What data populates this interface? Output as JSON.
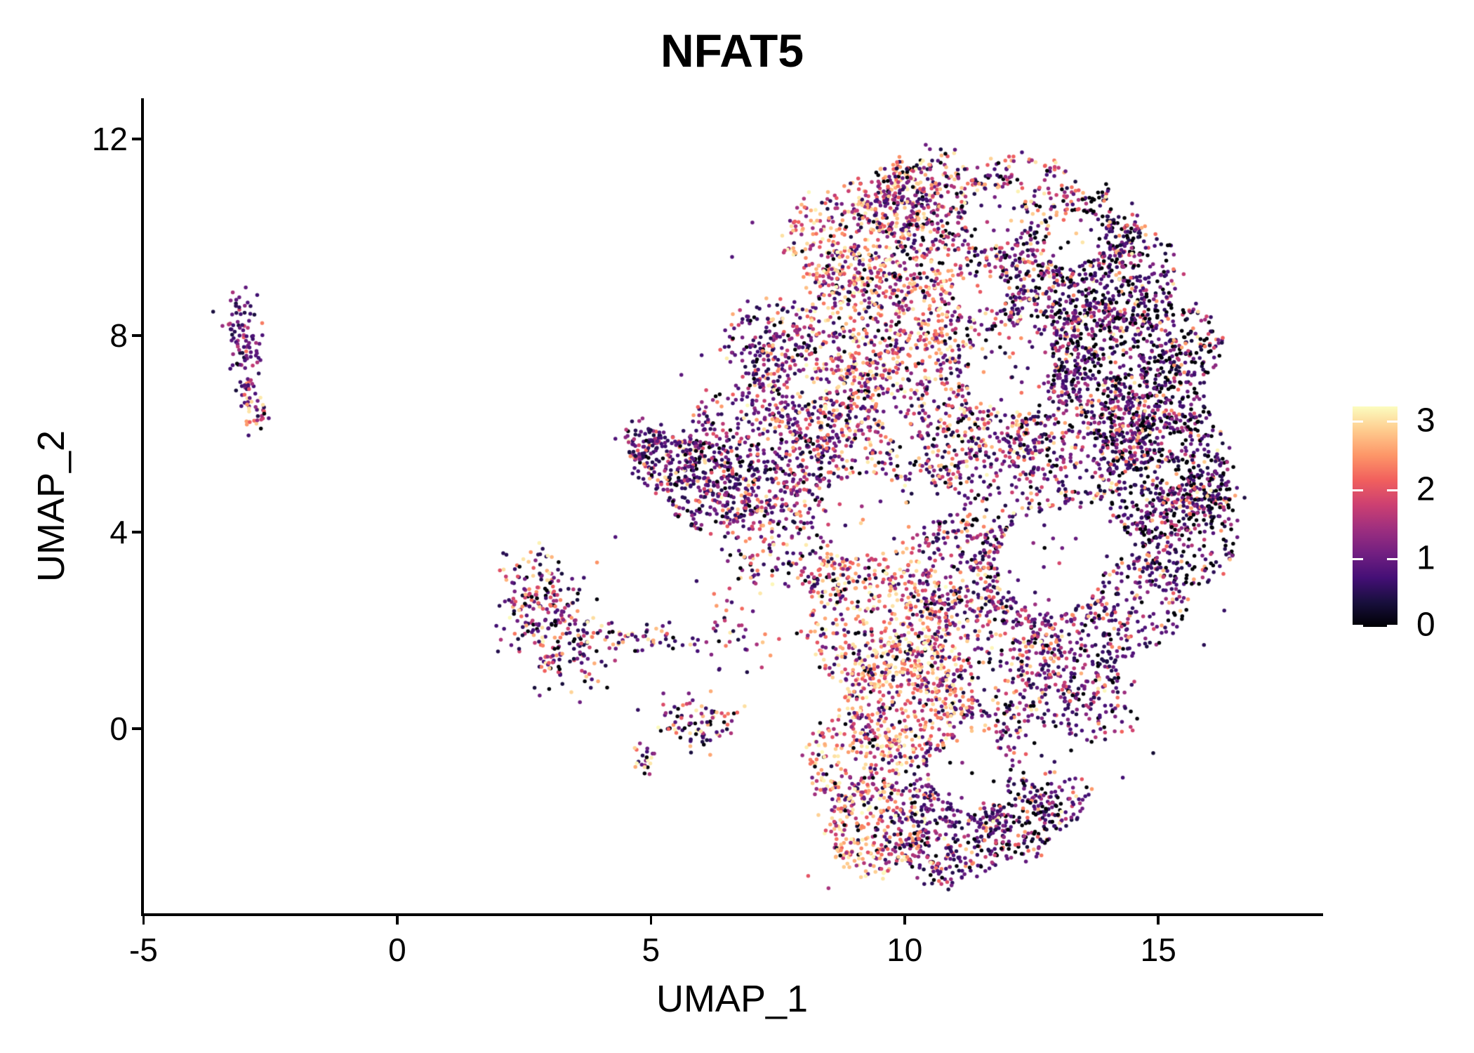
{
  "page": {
    "background": "#ffffff",
    "text_color": "#000000",
    "axis_color": "#000000"
  },
  "chart_data": {
    "type": "scatter",
    "title": "NFAT5",
    "xlabel": "UMAP_1",
    "ylabel": "UMAP_2",
    "x_ticks": [
      -5,
      0,
      5,
      10,
      15
    ],
    "y_ticks": [
      0,
      4,
      8,
      12
    ],
    "x_domain": [
      -5.02,
      18.22
    ],
    "y_domain": [
      -3.79,
      12.83
    ],
    "grid": false,
    "background": "#ffffff",
    "point_radius_px": 2.75,
    "seed": 42,
    "legend": {
      "position": "right",
      "ticks": [
        0,
        1,
        2,
        3
      ],
      "domain": [
        0,
        3.2
      ],
      "colormap": "magma",
      "tick_color": "#ffffff"
    },
    "colormap_stops": [
      "#000004",
      "#180f3d",
      "#440f76",
      "#721f81",
      "#9e2f7f",
      "#cd4071",
      "#f1605d",
      "#fd9668",
      "#feca8d",
      "#fcfdbf"
    ],
    "expression_profiles": {
      "dark": [
        [
          0.3,
          0.0,
          0.05
        ],
        [
          0.4,
          0.3,
          1.0
        ],
        [
          0.18,
          1.0,
          1.8
        ],
        [
          0.09,
          1.8,
          2.7
        ],
        [
          0.03,
          2.7,
          3.2
        ]
      ],
      "darkpurple": [
        [
          0.1,
          0.0,
          0.05
        ],
        [
          0.55,
          0.35,
          1.05
        ],
        [
          0.22,
          1.05,
          1.9
        ],
        [
          0.1,
          1.9,
          2.7
        ],
        [
          0.03,
          2.7,
          3.2
        ]
      ],
      "mixed": [
        [
          0.08,
          0.0,
          0.05
        ],
        [
          0.34,
          0.3,
          1.1
        ],
        [
          0.28,
          1.1,
          2.0
        ],
        [
          0.22,
          2.0,
          2.85
        ],
        [
          0.08,
          2.85,
          3.2
        ]
      ],
      "warm": [
        [
          0.05,
          0.0,
          0.05
        ],
        [
          0.18,
          0.3,
          1.2
        ],
        [
          0.27,
          1.2,
          2.1
        ],
        [
          0.33,
          2.1,
          2.95
        ],
        [
          0.17,
          2.95,
          3.2
        ]
      ],
      "satellite": [
        [
          0.05,
          0.0,
          0.05
        ],
        [
          0.63,
          0.35,
          1.0
        ],
        [
          0.22,
          1.0,
          1.7
        ],
        [
          0.07,
          1.7,
          2.4
        ],
        [
          0.03,
          2.4,
          3.0
        ]
      ],
      "satellitetip": [
        [
          0.05,
          0.0,
          0.05
        ],
        [
          0.25,
          0.4,
          1.1
        ],
        [
          0.25,
          1.1,
          2.0
        ],
        [
          0.28,
          2.0,
          2.9
        ],
        [
          0.17,
          2.9,
          3.2
        ]
      ],
      "midmix": [
        [
          0.1,
          0.0,
          0.05
        ],
        [
          0.43,
          0.3,
          1.1
        ],
        [
          0.22,
          1.1,
          2.0
        ],
        [
          0.17,
          2.0,
          2.9
        ],
        [
          0.08,
          2.9,
          3.2
        ]
      ],
      "midlow": [
        [
          0.18,
          0.0,
          0.05
        ],
        [
          0.37,
          0.3,
          1.1
        ],
        [
          0.2,
          1.1,
          2.0
        ],
        [
          0.17,
          2.0,
          2.9
        ],
        [
          0.08,
          2.9,
          3.2
        ]
      ]
    },
    "clusters": [
      {
        "shape": "g",
        "p": [
          -3.07,
          8.3,
          0.17,
          0.33
        ],
        "n": 48,
        "e": "satellite"
      },
      {
        "shape": "g",
        "p": [
          -3.0,
          7.65,
          0.14,
          0.3
        ],
        "n": 40,
        "e": "satellite"
      },
      {
        "shape": "g",
        "p": [
          -2.92,
          6.9,
          0.1,
          0.25
        ],
        "n": 22,
        "e": "satellite"
      },
      {
        "shape": "g",
        "p": [
          -2.82,
          6.45,
          0.1,
          0.22
        ],
        "n": 30,
        "e": "satellitetip"
      },
      {
        "shape": "g",
        "p": [
          2.8,
          2.55,
          0.42,
          0.5
        ],
        "n": 190,
        "e": "midmix"
      },
      {
        "shape": "g",
        "p": [
          3.4,
          1.55,
          0.45,
          0.4
        ],
        "n": 110,
        "e": "midmix"
      },
      {
        "shape": "c",
        "p": [
          3.8,
          1.95,
          6.1,
          1.75,
          0.18
        ],
        "n": 55,
        "e": "midmix"
      },
      {
        "shape": "g",
        "p": [
          5.9,
          0.1,
          0.42,
          0.28
        ],
        "n": 85,
        "e": "midlow"
      },
      {
        "shape": "g",
        "p": [
          4.92,
          -0.55,
          0.13,
          0.18
        ],
        "n": 22,
        "e": "midlow"
      },
      {
        "shape": "g",
        "p": [
          6.8,
          1.9,
          0.55,
          0.5
        ],
        "n": 40,
        "e": "mixed"
      },
      {
        "shape": "d",
        "p": [
          10.6,
          9.6,
          2.2
        ],
        "n": 620,
        "e": "mixed"
      },
      {
        "shape": "d",
        "p": [
          9.6,
          8.3,
          1.6
        ],
        "n": 380,
        "e": "warm"
      },
      {
        "shape": "d",
        "p": [
          10.4,
          10.7,
          1.0
        ],
        "n": 190,
        "e": "mixed"
      },
      {
        "shape": "d",
        "p": [
          12.9,
          9.0,
          1.9
        ],
        "n": 500,
        "e": "dark"
      },
      {
        "shape": "d",
        "p": [
          14.3,
          7.3,
          1.6
        ],
        "n": 380,
        "e": "dark"
      },
      {
        "shape": "d",
        "p": [
          15.1,
          5.2,
          1.4
        ],
        "n": 400,
        "e": "dark"
      },
      {
        "shape": "d",
        "p": [
          15.5,
          3.9,
          1.1
        ],
        "n": 220,
        "e": "dark"
      },
      {
        "shape": "d",
        "p": [
          13.4,
          5.9,
          1.4
        ],
        "n": 260,
        "e": "darkpurple"
      },
      {
        "shape": "d",
        "p": [
          7.1,
          5.6,
          1.5
        ],
        "n": 430,
        "e": "darkpurple"
      },
      {
        "shape": "d",
        "p": [
          6.2,
          4.9,
          0.9
        ],
        "n": 200,
        "e": "darkpurple"
      },
      {
        "shape": "d",
        "p": [
          5.3,
          5.5,
          0.7
        ],
        "n": 150,
        "e": "darkpurple"
      },
      {
        "shape": "d",
        "p": [
          4.85,
          5.9,
          0.4
        ],
        "n": 50,
        "e": "darkpurple"
      },
      {
        "shape": "d",
        "p": [
          8.3,
          6.9,
          1.4
        ],
        "n": 330,
        "e": "mixed"
      },
      {
        "shape": "d",
        "p": [
          8.1,
          4.0,
          1.6
        ],
        "n": 360,
        "e": "mixed"
      },
      {
        "shape": "d",
        "p": [
          9.9,
          6.1,
          1.6
        ],
        "n": 300,
        "e": "mixed"
      },
      {
        "shape": "d",
        "p": [
          11.6,
          4.8,
          1.7
        ],
        "n": 330,
        "e": "darkpurple"
      },
      {
        "shape": "d",
        "p": [
          12.6,
          3.2,
          1.3
        ],
        "n": 220,
        "e": "darkpurple"
      },
      {
        "shape": "d",
        "p": [
          9.4,
          2.3,
          1.5
        ],
        "n": 430,
        "e": "warm"
      },
      {
        "shape": "d",
        "p": [
          10.1,
          0.6,
          1.3
        ],
        "n": 380,
        "e": "warm"
      },
      {
        "shape": "d",
        "p": [
          11.6,
          1.5,
          1.6
        ],
        "n": 380,
        "e": "mixed"
      },
      {
        "shape": "d",
        "p": [
          13.3,
          1.6,
          1.2
        ],
        "n": 230,
        "e": "darkpurple"
      },
      {
        "shape": "d",
        "p": [
          14.3,
          9.2,
          1.1
        ],
        "n": 230,
        "e": "dark"
      },
      {
        "shape": "d",
        "p": [
          11.9,
          6.7,
          1.3
        ],
        "n": 240,
        "e": "mixed"
      },
      {
        "shape": "d",
        "p": [
          12.4,
          10.4,
          1.3
        ],
        "n": 220,
        "e": "mixed"
      },
      {
        "shape": "d",
        "p": [
          14.9,
          6.3,
          1.1
        ],
        "n": 220,
        "e": "dark"
      },
      {
        "shape": "d",
        "p": [
          9.0,
          -0.6,
          1.0
        ],
        "n": 200,
        "e": "warm"
      },
      {
        "shape": "d",
        "p": [
          9.4,
          -2.0,
          1.0
        ],
        "n": 280,
        "e": "warm"
      },
      {
        "shape": "d",
        "p": [
          10.9,
          -2.1,
          1.1
        ],
        "n": 330,
        "e": "darkpurple"
      },
      {
        "shape": "d",
        "p": [
          12.3,
          -1.8,
          0.9
        ],
        "n": 200,
        "e": "dark"
      },
      {
        "shape": "d",
        "p": [
          13.05,
          -1.35,
          0.6
        ],
        "n": 80,
        "e": "darkpurple"
      },
      {
        "shape": "d",
        "p": [
          7.3,
          7.9,
          0.9
        ],
        "n": 150,
        "e": "darkpurple"
      },
      {
        "shape": "d",
        "p": [
          8.7,
          9.9,
          1.1
        ],
        "n": 200,
        "e": "warm"
      },
      {
        "shape": "d",
        "p": [
          9.9,
          10.8,
          0.75
        ],
        "n": 110,
        "e": "warm"
      },
      {
        "shape": "d",
        "p": [
          15.9,
          4.8,
          0.55
        ],
        "n": 100,
        "e": "dark"
      },
      {
        "shape": "d",
        "p": [
          15.4,
          7.8,
          0.9
        ],
        "n": 150,
        "e": "dark"
      },
      {
        "shape": "d",
        "p": [
          13.9,
          10.2,
          0.8
        ],
        "n": 120,
        "e": "dark"
      },
      {
        "shape": "d",
        "p": [
          11.2,
          3.2,
          1.2
        ],
        "n": 200,
        "e": "mixed"
      },
      {
        "shape": "d",
        "p": [
          12.7,
          7.9,
          1.1
        ],
        "n": 200,
        "e": "darkpurple"
      },
      {
        "shape": "d",
        "p": [
          14.6,
          2.6,
          1.0
        ],
        "n": 160,
        "e": "darkpurple"
      },
      {
        "shape": "d",
        "p": [
          13.9,
          0.6,
          0.9
        ],
        "n": 130,
        "e": "darkpurple"
      },
      {
        "shape": "d",
        "p": [
          12.4,
          -0.3,
          0.9
        ],
        "n": 110,
        "e": "darkpurple"
      },
      {
        "shape": "d",
        "p": [
          10.8,
          -0.9,
          0.8
        ],
        "n": 90,
        "e": "mixed"
      }
    ],
    "holes": [
      [
        12.9,
        3.4,
        1.05,
        0.92
      ],
      [
        12.1,
        7.3,
        0.85,
        0.9
      ],
      [
        9.15,
        4.3,
        0.85,
        0.85
      ],
      [
        11.8,
        10.4,
        0.6,
        0.9
      ],
      [
        13.35,
        10.0,
        0.55,
        0.9
      ],
      [
        11.3,
        -0.9,
        0.75,
        0.88
      ],
      [
        12.8,
        -0.6,
        0.6,
        0.88
      ],
      [
        11.5,
        8.8,
        0.5,
        0.85
      ],
      [
        7.6,
        2.6,
        0.55,
        0.8
      ],
      [
        10.3,
        4.6,
        0.6,
        0.7
      ],
      [
        14.9,
        0.9,
        0.7,
        0.85
      ]
    ],
    "outliers": [
      [
        15.3,
        9.35,
        2.3
      ],
      [
        15.5,
        9.25,
        1.7
      ],
      [
        16.55,
        4.9,
        0.8
      ],
      [
        16.7,
        4.7,
        0.4
      ],
      [
        12.15,
        11.55,
        1.2
      ],
      [
        11.7,
        11.6,
        2.9
      ],
      [
        13.2,
        11.0,
        0.4
      ],
      [
        6.0,
        7.6,
        0.7
      ],
      [
        5.6,
        7.2,
        0.9
      ],
      [
        4.3,
        5.9,
        0.8
      ],
      [
        16.3,
        2.4,
        0.6
      ],
      [
        15.9,
        1.7,
        0.5
      ],
      [
        14.9,
        -0.5,
        0.3
      ],
      [
        14.3,
        -1.0,
        0.7
      ],
      [
        8.1,
        -3.0,
        2.0
      ],
      [
        8.5,
        -3.25,
        1.5
      ],
      [
        4.3,
        3.9,
        0.8
      ],
      [
        5.9,
        3.0,
        0.6
      ],
      [
        6.5,
        2.6,
        1.4
      ],
      [
        7.0,
        10.3,
        1.0
      ],
      [
        6.6,
        9.6,
        0.8
      ]
    ],
    "total_points_approx": 10500
  }
}
